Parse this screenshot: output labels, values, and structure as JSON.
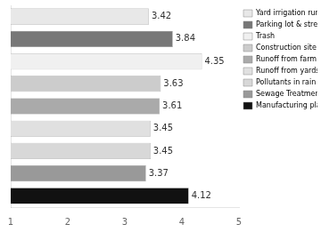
{
  "chart_data": {
    "type": "bar",
    "orientation": "horizontal",
    "categories": [
      "Yard irrigation runoff",
      "Parking lot & street runoff",
      "Trash",
      "Construction site erosion",
      "Runoff from farm fields",
      "Runoff from yards",
      "Pollutants in rain",
      "Sewage Treatment",
      "Manufacturing plants"
    ],
    "values": [
      3.42,
      3.84,
      4.35,
      3.63,
      3.61,
      3.45,
      3.45,
      3.37,
      4.12
    ],
    "colors": [
      "#e8e8e8",
      "#777777",
      "#f0f0f0",
      "#cccccc",
      "#aaaaaa",
      "#e0e0e0",
      "#d8d8d8",
      "#999999",
      "#111111"
    ],
    "xlim": [
      1,
      5
    ],
    "xticks": [
      1,
      2,
      3,
      4,
      5
    ],
    "grid": false,
    "legend": "upper right",
    "data_labels": true,
    "tick_labels": "x"
  }
}
